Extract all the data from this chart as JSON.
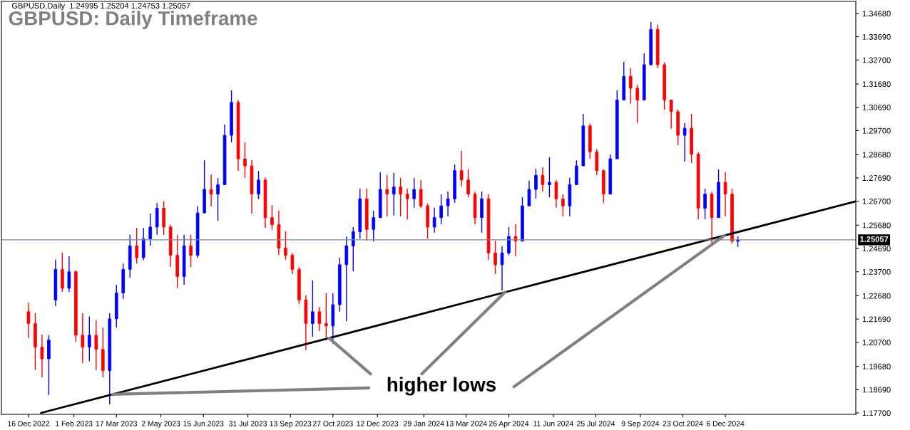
{
  "chart_data": {
    "type": "candlestick",
    "title": "GBPUSD: Daily Timeframe",
    "annotations": [
      "GBPUSD,Daily  1.24995 1.25204 1.24753 1.25057",
      {
        "text": "higher lows",
        "x": "2023-10-23",
        "y": 1.2088
      }
    ],
    "series": [
      {
        "x": [
          "2022-12-16",
          "2022-12-23",
          "2022-12-30",
          "2023-01-06",
          "2023-01-13",
          "2023-01-20",
          "2023-01-27",
          "2023-02-03",
          "2023-02-10",
          "2023-02-17",
          "2023-02-24",
          "2023-03-03",
          "2023-03-10",
          "2023-03-17",
          "2023-03-24",
          "2023-03-31",
          "2023-04-07",
          "2023-04-14",
          "2023-04-21",
          "2023-04-28",
          "2023-05-05",
          "2023-05-12",
          "2023-05-19",
          "2023-05-26",
          "2023-06-02",
          "2023-06-09",
          "2023-06-16",
          "2023-06-23",
          "2023-06-30",
          "2023-07-07",
          "2023-07-14",
          "2023-07-21",
          "2023-07-28",
          "2023-08-04",
          "2023-08-11",
          "2023-08-18",
          "2023-08-25",
          "2023-09-01",
          "2023-09-08",
          "2023-09-15",
          "2023-09-22",
          "2023-09-29",
          "2023-10-06",
          "2023-10-13",
          "2023-10-20",
          "2023-10-27",
          "2023-11-03",
          "2023-11-10",
          "2023-11-17",
          "2023-11-24",
          "2023-12-01",
          "2023-12-08",
          "2023-12-15",
          "2023-12-22",
          "2023-12-29",
          "2024-01-05",
          "2024-01-12",
          "2024-01-19",
          "2024-01-26",
          "2024-02-02",
          "2024-02-09",
          "2024-02-16",
          "2024-02-23",
          "2024-03-01",
          "2024-03-08",
          "2024-03-15",
          "2024-03-22",
          "2024-03-29",
          "2024-04-05",
          "2024-04-12",
          "2024-04-19",
          "2024-04-26",
          "2024-05-03",
          "2024-05-10",
          "2024-05-17",
          "2024-05-24",
          "2024-05-31",
          "2024-06-07",
          "2024-06-14",
          "2024-06-21",
          "2024-06-28",
          "2024-07-05",
          "2024-07-12",
          "2024-07-19",
          "2024-07-26",
          "2024-08-02",
          "2024-08-09",
          "2024-08-16",
          "2024-08-23",
          "2024-08-30",
          "2024-09-06",
          "2024-09-13",
          "2024-09-20",
          "2024-09-27",
          "2024-10-04",
          "2024-10-11",
          "2024-10-18",
          "2024-10-25",
          "2024-11-01",
          "2024-11-08",
          "2024-11-15",
          "2024-11-22",
          "2024-11-29",
          "2024-12-06",
          "2024-12-13",
          "2024-12-19"
        ],
        "ohlc": [
          [
            1.22,
            1.2239,
            1.2088,
            1.215
          ],
          [
            1.215,
            1.2194,
            1.1952,
            1.205
          ],
          [
            1.205,
            1.2103,
            1.1921,
            1.2
          ],
          [
            1.2,
            1.21,
            1.1846,
            1.208
          ],
          [
            1.225,
            1.2421,
            1.2224,
            1.238
          ],
          [
            1.238,
            1.2451,
            1.2284,
            1.23
          ],
          [
            1.23,
            1.2436,
            1.2284,
            1.237
          ],
          [
            1.237,
            1.2375,
            1.2073,
            1.21
          ],
          [
            1.21,
            1.2194,
            1.1982,
            1.205
          ],
          [
            1.205,
            1.218,
            1.199,
            1.21
          ],
          [
            1.21,
            1.2163,
            1.1952,
            1.204
          ],
          [
            1.204,
            1.2133,
            1.1921,
            1.195
          ],
          [
            1.195,
            1.2194,
            1.1806,
            1.217
          ],
          [
            1.217,
            1.2315,
            1.2133,
            1.228
          ],
          [
            1.228,
            1.2405,
            1.2254,
            1.238
          ],
          [
            1.238,
            1.2527,
            1.2345,
            1.248
          ],
          [
            1.248,
            1.2557,
            1.2405,
            1.243
          ],
          [
            1.243,
            1.2557,
            1.242,
            1.251
          ],
          [
            1.251,
            1.2617,
            1.2481,
            1.256
          ],
          [
            1.256,
            1.2663,
            1.2527,
            1.264
          ],
          [
            1.264,
            1.2669,
            1.2527,
            1.256
          ],
          [
            1.256,
            1.257,
            1.239,
            1.244
          ],
          [
            1.244,
            1.2527,
            1.23,
            1.235
          ],
          [
            1.235,
            1.2527,
            1.2315,
            1.248
          ],
          [
            1.248,
            1.2527,
            1.239,
            1.244
          ],
          [
            1.244,
            1.2648,
            1.243,
            1.262
          ],
          [
            1.262,
            1.2844,
            1.262,
            1.272
          ],
          [
            1.272,
            1.2784,
            1.2648,
            1.27
          ],
          [
            1.27,
            1.2769,
            1.2587,
            1.274
          ],
          [
            1.274,
            1.2996,
            1.2738,
            1.295
          ],
          [
            1.295,
            1.3141,
            1.292,
            1.309
          ],
          [
            1.309,
            1.31,
            1.2799,
            1.285
          ],
          [
            1.285,
            1.292,
            1.2769,
            1.282
          ],
          [
            1.282,
            1.2844,
            1.2617,
            1.27
          ],
          [
            1.27,
            1.2799,
            1.2678,
            1.276
          ],
          [
            1.276,
            1.277,
            1.2557,
            1.26
          ],
          [
            1.26,
            1.2654,
            1.2548,
            1.257
          ],
          [
            1.257,
            1.263,
            1.2442,
            1.247
          ],
          [
            1.247,
            1.2542,
            1.2421,
            1.244
          ],
          [
            1.244,
            1.245,
            1.236,
            1.238
          ],
          [
            1.238,
            1.239,
            1.2233,
            1.225
          ],
          [
            1.225,
            1.227,
            1.2037,
            1.215
          ],
          [
            1.215,
            1.2333,
            1.2094,
            1.22
          ],
          [
            1.22,
            1.2221,
            1.2118,
            1.215
          ],
          [
            1.215,
            1.228,
            1.209,
            1.214
          ],
          [
            1.214,
            1.2279,
            1.2063,
            1.223
          ],
          [
            1.223,
            1.243,
            1.22,
            1.24
          ],
          [
            1.24,
            1.252,
            1.216,
            1.248
          ],
          [
            1.248,
            1.256,
            1.2372,
            1.254
          ],
          [
            1.254,
            1.2723,
            1.2511,
            1.268
          ],
          [
            1.268,
            1.2723,
            1.2502,
            1.255
          ],
          [
            1.255,
            1.263,
            1.2499,
            1.26
          ],
          [
            1.26,
            1.2793,
            1.26,
            1.272
          ],
          [
            1.272,
            1.2781,
            1.2605,
            1.27
          ],
          [
            1.27,
            1.279,
            1.261,
            1.273
          ],
          [
            1.273,
            1.2769,
            1.2605,
            1.27
          ],
          [
            1.27,
            1.2723,
            1.2593,
            1.268
          ],
          [
            1.268,
            1.2769,
            1.2642,
            1.272
          ],
          [
            1.272,
            1.276,
            1.264,
            1.265
          ],
          [
            1.265,
            1.266,
            1.2511,
            1.256
          ],
          [
            1.256,
            1.2642,
            1.2536,
            1.26
          ],
          [
            1.26,
            1.2699,
            1.2572,
            1.265
          ],
          [
            1.265,
            1.2711,
            1.2605,
            1.268
          ],
          [
            1.268,
            1.2826,
            1.2663,
            1.28
          ],
          [
            1.28,
            1.2884,
            1.2732,
            1.276
          ],
          [
            1.276,
            1.2805,
            1.2687,
            1.27
          ],
          [
            1.27,
            1.271,
            1.2572,
            1.26
          ],
          [
            1.26,
            1.2711,
            1.2536,
            1.268
          ],
          [
            1.268,
            1.2699,
            1.2421,
            1.245
          ],
          [
            1.245,
            1.2502,
            1.236,
            1.24
          ],
          [
            1.24,
            1.2478,
            1.229,
            1.245
          ],
          [
            1.245,
            1.256,
            1.244,
            1.252
          ],
          [
            1.252,
            1.2572,
            1.2436,
            1.25
          ],
          [
            1.25,
            1.2687,
            1.25,
            1.265
          ],
          [
            1.265,
            1.2757,
            1.265,
            1.272
          ],
          [
            1.272,
            1.2808,
            1.2681,
            1.278
          ],
          [
            1.278,
            1.2814,
            1.2711,
            1.274
          ],
          [
            1.274,
            1.2857,
            1.2687,
            1.275
          ],
          [
            1.275,
            1.276,
            1.2642,
            1.268
          ],
          [
            1.268,
            1.2699,
            1.2605,
            1.265
          ],
          [
            1.265,
            1.2769,
            1.2605,
            1.274
          ],
          [
            1.274,
            1.2844,
            1.274,
            1.282
          ],
          [
            1.282,
            1.3041,
            1.282,
            1.299
          ],
          [
            1.299,
            1.3,
            1.285,
            1.288
          ],
          [
            1.288,
            1.289,
            1.2781,
            1.28
          ],
          [
            1.28,
            1.2805,
            1.2663,
            1.27
          ],
          [
            1.27,
            1.2869,
            1.27,
            1.285
          ],
          [
            1.285,
            1.3141,
            1.285,
            1.31
          ],
          [
            1.31,
            1.3262,
            1.31,
            1.32
          ],
          [
            1.32,
            1.3235,
            1.3084,
            1.315
          ],
          [
            1.315,
            1.3165,
            1.3002,
            1.31
          ],
          [
            1.31,
            1.3298,
            1.31,
            1.325
          ],
          [
            1.325,
            1.3432,
            1.3247,
            1.34
          ],
          [
            1.34,
            1.342,
            1.3235,
            1.325
          ],
          [
            1.325,
            1.326,
            1.3059,
            1.31
          ],
          [
            1.31,
            1.3102,
            1.2978,
            1.305
          ],
          [
            1.305,
            1.306,
            1.2908,
            1.295
          ],
          [
            1.295,
            1.3002,
            1.2838,
            1.298
          ],
          [
            1.298,
            1.3041,
            1.2832,
            1.287
          ],
          [
            1.287,
            1.288,
            1.2593,
            1.264
          ],
          [
            1.264,
            1.2723,
            1.2593,
            1.27
          ],
          [
            1.27,
            1.271,
            1.2484,
            1.26
          ],
          [
            1.26,
            1.2805,
            1.26,
            1.275
          ],
          [
            1.275,
            1.2793,
            1.2605,
            1.27
          ],
          [
            1.27,
            1.2723,
            1.249,
            1.25
          ],
          [
            1.24995,
            1.25204,
            1.24753,
            1.25057
          ]
        ],
        "colors": [
          "#ff0000",
          "#ff0000",
          "#ff0000",
          "#0000ff",
          "#0000ff",
          "#ff0000",
          "#0000ff",
          "#ff0000",
          "#ff0000",
          "#0000ff",
          "#ff0000",
          "#ff0000",
          "#0000ff",
          "#0000ff",
          "#0000ff",
          "#0000ff",
          "#ff0000",
          "#0000ff",
          "#0000ff",
          "#0000ff",
          "#ff0000",
          "#ff0000",
          "#ff0000",
          "#0000ff",
          "#ff0000",
          "#0000ff",
          "#0000ff",
          "#ff0000",
          "#0000ff",
          "#0000ff",
          "#0000ff",
          "#ff0000",
          "#ff0000",
          "#ff0000",
          "#0000ff",
          "#ff0000",
          "#ff0000",
          "#ff0000",
          "#ff0000",
          "#ff0000",
          "#ff0000",
          "#ff0000",
          "#0000ff",
          "#ff0000",
          "#ff0000",
          "#0000ff",
          "#0000ff",
          "#0000ff",
          "#0000ff",
          "#0000ff",
          "#ff0000",
          "#0000ff",
          "#0000ff",
          "#ff0000",
          "#0000ff",
          "#ff0000",
          "#ff0000",
          "#0000ff",
          "#ff0000",
          "#ff0000",
          "#0000ff",
          "#0000ff",
          "#0000ff",
          "#0000ff",
          "#ff0000",
          "#ff0000",
          "#ff0000",
          "#0000ff",
          "#ff0000",
          "#ff0000",
          "#0000ff",
          "#0000ff",
          "#ff0000",
          "#0000ff",
          "#0000ff",
          "#0000ff",
          "#ff0000",
          "#0000ff",
          "#ff0000",
          "#ff0000",
          "#0000ff",
          "#0000ff",
          "#0000ff",
          "#ff0000",
          "#ff0000",
          "#ff0000",
          "#0000ff",
          "#0000ff",
          "#0000ff",
          "#ff0000",
          "#ff0000",
          "#0000ff",
          "#0000ff",
          "#ff0000",
          "#ff0000",
          "#ff0000",
          "#ff0000",
          "#0000ff",
          "#ff0000",
          "#ff0000",
          "#0000ff",
          "#ff0000",
          "#0000ff",
          "#ff0000",
          "#ff0000",
          "#0000ff"
        ]
      },
      {
        "type": "line",
        "color": "#000000",
        "x": [
          "2022-12-29",
          "2023-03-13",
          "2023-10-23",
          "2024-04-22",
          "2024-12-05",
          "2025-04-20"
        ],
        "values": [
          1.177,
          1.1849,
          1.2088,
          1.2283,
          1.2524,
          1.2669
        ]
      }
    ],
    "ref_lines": [
      {
        "axis": "y",
        "value": 1.25057,
        "label": "1.25057",
        "color": "#778899"
      }
    ],
    "xlim": [
      "2022-11-18",
      "2025-04-20"
    ],
    "xticks": [
      {
        "value": "2022-12-16",
        "label": "16 Dec 2022"
      },
      {
        "value": "2023-02-01",
        "label": "1 Feb 2023"
      },
      {
        "value": "2023-03-17",
        "label": "17 Mar 2023"
      },
      {
        "value": "2023-05-02",
        "label": "2 May 2023"
      },
      {
        "value": "2023-06-15",
        "label": "15 Jun 2023"
      },
      {
        "value": "2023-07-31",
        "label": "31 Jul 2023"
      },
      {
        "value": "2023-09-13",
        "label": "13 Sep 2023"
      },
      {
        "value": "2023-10-27",
        "label": "27 Oct 2023"
      },
      {
        "value": "2023-12-12",
        "label": "12 Dec 2023"
      },
      {
        "value": "2024-01-29",
        "label": "29 Jan 2024"
      },
      {
        "value": "2024-03-13",
        "label": "13 Mar 2024"
      },
      {
        "value": "2024-04-26",
        "label": "26 Apr 2024"
      },
      {
        "value": "2024-06-11",
        "label": "11 Jun 2024"
      },
      {
        "value": "2024-07-25",
        "label": "25 Jul 2024"
      },
      {
        "value": "2024-09-09",
        "label": "9 Sep 2024"
      },
      {
        "value": "2024-10-23",
        "label": "23 Oct 2024"
      },
      {
        "value": "2024-12-06",
        "label": "6 Dec 2024"
      }
    ],
    "ylim": [
      1.1764,
      1.3519
    ],
    "yticks": [
      {
        "value": 1.177,
        "label": "1.17700"
      },
      {
        "value": 1.1869,
        "label": "1.18690"
      },
      {
        "value": 1.1968,
        "label": "1.19680"
      },
      {
        "value": 1.207,
        "label": "1.20700"
      },
      {
        "value": 1.2169,
        "label": "1.21690"
      },
      {
        "value": 1.2268,
        "label": "1.22680"
      },
      {
        "value": 1.237,
        "label": "1.23700"
      },
      {
        "value": 1.2469,
        "label": "1.24690"
      },
      {
        "value": 1.2568,
        "label": "1.25680"
      },
      {
        "value": 1.267,
        "label": "1.26700"
      },
      {
        "value": 1.2769,
        "label": "1.27690"
      },
      {
        "value": 1.2868,
        "label": "1.28680"
      },
      {
        "value": 1.297,
        "label": "1.29700"
      },
      {
        "value": 1.3069,
        "label": "1.30690"
      },
      {
        "value": 1.3168,
        "label": "1.31680"
      },
      {
        "value": 1.327,
        "label": "1.32700"
      },
      {
        "value": 1.3369,
        "label": "1.33690"
      },
      {
        "value": 1.3468,
        "label": "1.34680"
      }
    ],
    "grid": false,
    "legend": false
  }
}
